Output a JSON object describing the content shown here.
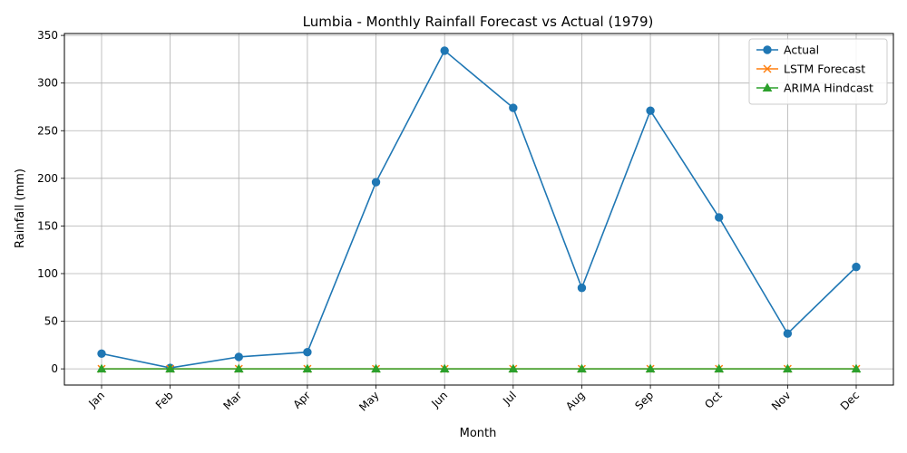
{
  "chart_data": {
    "type": "line",
    "title": "Lumbia - Monthly Rainfall Forecast vs Actual (1979)",
    "xlabel": "Month",
    "ylabel": "Rainfall (mm)",
    "categories": [
      "Jan",
      "Feb",
      "Mar",
      "Apr",
      "May",
      "Jun",
      "Jul",
      "Aug",
      "Sep",
      "Oct",
      "Nov",
      "Dec"
    ],
    "ylim": [
      -17,
      352
    ],
    "yticks": [
      0,
      50,
      100,
      150,
      200,
      250,
      300,
      350
    ],
    "grid": true,
    "legend_position": "top-right",
    "series": [
      {
        "name": "Actual",
        "color": "#1f77b4",
        "marker": "circle",
        "values": [
          16,
          1,
          12.5,
          17.5,
          196,
          334,
          274,
          85,
          271,
          159,
          37,
          107
        ]
      },
      {
        "name": "LSTM Forecast",
        "color": "#ff7f0e",
        "marker": "x",
        "values": [
          0,
          0,
          0,
          0,
          0,
          0,
          0,
          0,
          0,
          0,
          0,
          0
        ]
      },
      {
        "name": "ARIMA Hindcast",
        "color": "#2ca02c",
        "marker": "triangle",
        "values": [
          0,
          0,
          0,
          0,
          0,
          0,
          0,
          0,
          0,
          0,
          0,
          0
        ]
      }
    ]
  }
}
